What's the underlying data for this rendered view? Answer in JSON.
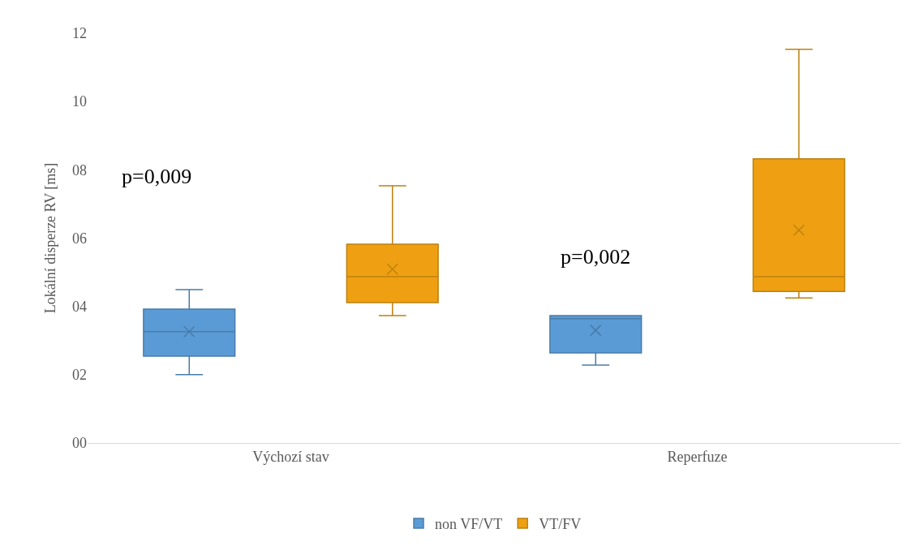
{
  "chart_data": {
    "type": "box",
    "ylabel": "Lokální disperze RV [ms]",
    "categories": [
      "Výchozí stav",
      "Reperfuze"
    ],
    "series": [
      {
        "name": "non VF/VT",
        "color": "#5b9bd5",
        "boxes": [
          {
            "low": 2.0,
            "q1": 2.54,
            "median": 3.26,
            "q3": 3.92,
            "high": 4.49,
            "mean": 3.26
          },
          {
            "low": 2.28,
            "q1": 2.64,
            "median": 3.64,
            "q3": 3.73,
            "high": 3.73,
            "mean": 3.3
          }
        ]
      },
      {
        "name": "VT/FV",
        "color": "#eea012",
        "boxes": [
          {
            "low": 3.73,
            "q1": 4.11,
            "median": 4.87,
            "q3": 5.82,
            "high": 7.53,
            "mean": 5.09
          },
          {
            "low": 4.25,
            "q1": 4.44,
            "median": 4.87,
            "q3": 8.32,
            "high": 11.53,
            "mean": 6.23
          }
        ]
      }
    ],
    "ylim": [
      0,
      12
    ],
    "yticks": [
      {
        "value": 0,
        "label": "00"
      },
      {
        "value": 2,
        "label": "02"
      },
      {
        "value": 4,
        "label": "04"
      },
      {
        "value": 6,
        "label": "06"
      },
      {
        "value": 8,
        "label": "08"
      },
      {
        "value": 10,
        "label": "10"
      },
      {
        "value": 12,
        "label": "12"
      }
    ],
    "annotations": [
      "p=0,009",
      "p=0,002"
    ],
    "legend": "bottom",
    "grid": false,
    "marker": "cross"
  }
}
